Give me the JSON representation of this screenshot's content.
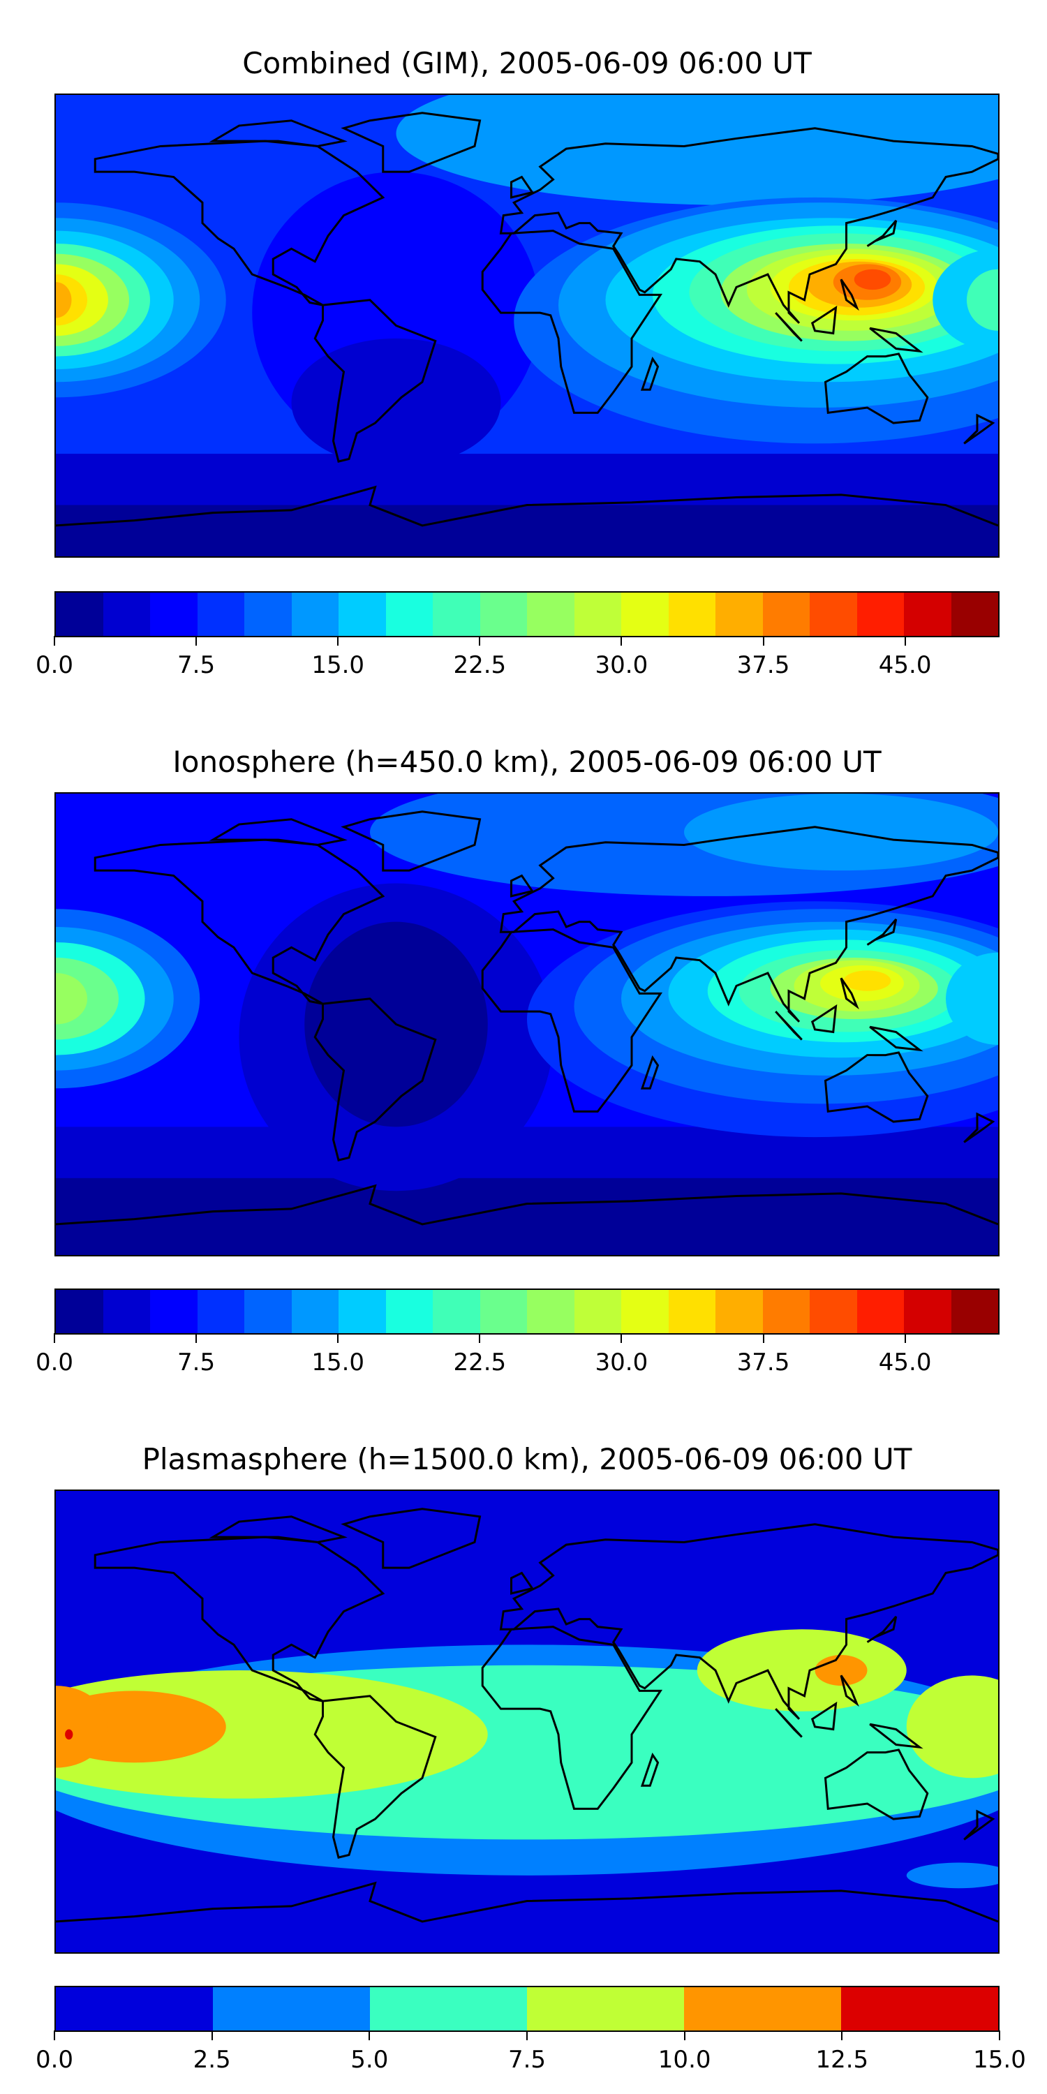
{
  "chart_data": [
    {
      "type": "heatmap",
      "title": "Combined (GIM), 2005-06-09 06:00 UT",
      "colorbar": {
        "min": 0,
        "max": 50,
        "step": 2.5,
        "ticks": [
          "0.0",
          "7.5",
          "15.0",
          "22.5",
          "30.0",
          "37.5",
          "45.0"
        ],
        "tick_values": [
          0,
          7.5,
          15,
          22.5,
          30,
          37.5,
          45
        ],
        "colors": [
          "#000098",
          "#0000d0",
          "#0000ff",
          "#0030ff",
          "#0064ff",
          "#0098ff",
          "#00ccff",
          "#19ffe0",
          "#40ffb7",
          "#6aff8d",
          "#97ff60",
          "#bfff38",
          "#e4ff14",
          "#ffe000",
          "#ffae00",
          "#ff7c00",
          "#ff4c00",
          "#ff1e00",
          "#d40000",
          "#990000"
        ]
      },
      "peaks": [
        {
          "lon": 125,
          "lat": 10,
          "value": 42
        },
        {
          "lon": -180,
          "lat": 10,
          "value": 36
        }
      ]
    },
    {
      "type": "heatmap",
      "title": "Ionosphere  (h=450.0 km), 2005-06-09 06:00 UT",
      "colorbar": {
        "min": 0,
        "max": 50,
        "step": 2.5,
        "ticks": [
          "0.0",
          "7.5",
          "15.0",
          "22.5",
          "30.0",
          "37.5",
          "45.0"
        ],
        "tick_values": [
          0,
          7.5,
          15,
          22.5,
          30,
          37.5,
          45
        ],
        "colors": [
          "#000098",
          "#0000d0",
          "#0000ff",
          "#0030ff",
          "#0064ff",
          "#0098ff",
          "#00ccff",
          "#19ffe0",
          "#40ffb7",
          "#6aff8d",
          "#97ff60",
          "#bfff38",
          "#e4ff14",
          "#ffe000",
          "#ffae00",
          "#ff7c00",
          "#ff4c00",
          "#ff1e00",
          "#d40000",
          "#990000"
        ]
      },
      "peaks": [
        {
          "lon": 125,
          "lat": 10,
          "value": 35
        },
        {
          "lon": -180,
          "lat": 10,
          "value": 27
        }
      ]
    },
    {
      "type": "heatmap",
      "title": "Plasmasphere (h=1500.0 km), 2005-06-09 06:00 UT",
      "colorbar": {
        "min": 0,
        "max": 15,
        "step": 2.5,
        "ticks": [
          "0.0",
          "2.5",
          "5.0",
          "7.5",
          "10.0",
          "12.5",
          "15.0"
        ],
        "tick_values": [
          0,
          2.5,
          5,
          7.5,
          10,
          12.5,
          15
        ],
        "colors": [
          "#0000dc",
          "#0080ff",
          "#3affc0",
          "#c0ff35",
          "#ff9500",
          "#dc0000"
        ]
      },
      "peaks": [
        {
          "lon": -175,
          "lat": 5,
          "value": 12.5
        },
        {
          "lon": 122,
          "lat": 15,
          "value": 12.5
        }
      ]
    }
  ]
}
